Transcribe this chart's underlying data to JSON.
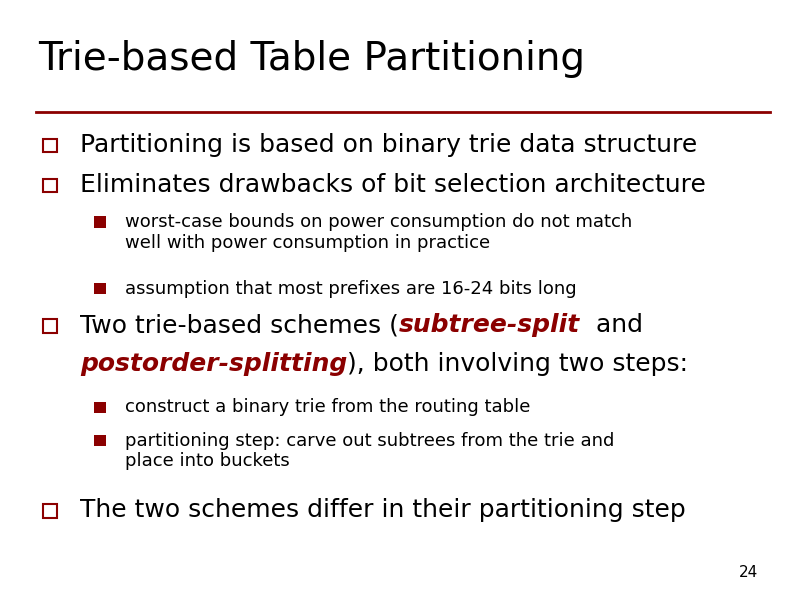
{
  "title": "Trie-based Table Partitioning",
  "title_fontsize": 28,
  "title_color": "#000000",
  "line_color": "#8B0000",
  "background_color": "#FFFFFF",
  "bullet_outline_color": "#8B0000",
  "sub_bullet_color": "#8B0000",
  "text_color": "#000000",
  "page_number": "24",
  "l1_fontsize": 18,
  "l2_fontsize": 13,
  "items": [
    {
      "level": 1,
      "text": "Partitioning is based on binary trie data structure"
    },
    {
      "level": 1,
      "text": "Eliminates drawbacks of bit selection architecture"
    },
    {
      "level": 2,
      "text": "worst-case bounds on power consumption do not match\nwell with power consumption in practice"
    },
    {
      "level": 2,
      "text": "assumption that most prefixes are 16-24 bits long"
    },
    {
      "level": 1,
      "mixed": true,
      "line1": [
        {
          "text": "Two trie-based schemes (",
          "bold": false,
          "italic": false,
          "color": "#000000"
        },
        {
          "text": "subtree-split",
          "bold": true,
          "italic": true,
          "color": "#8B0000"
        },
        {
          "text": "  and",
          "bold": false,
          "italic": false,
          "color": "#000000"
        }
      ],
      "line2": [
        {
          "text": "postorder-splitting",
          "bold": true,
          "italic": true,
          "color": "#8B0000"
        },
        {
          "text": "), both involving two steps:",
          "bold": false,
          "italic": false,
          "color": "#000000"
        }
      ]
    },
    {
      "level": 2,
      "text": "construct a binary trie from the routing table"
    },
    {
      "level": 2,
      "text": "partitioning step: carve out subtrees from the trie and\nplace into buckets"
    },
    {
      "level": 1,
      "text": "The two schemes differ in their partitioning step"
    }
  ]
}
